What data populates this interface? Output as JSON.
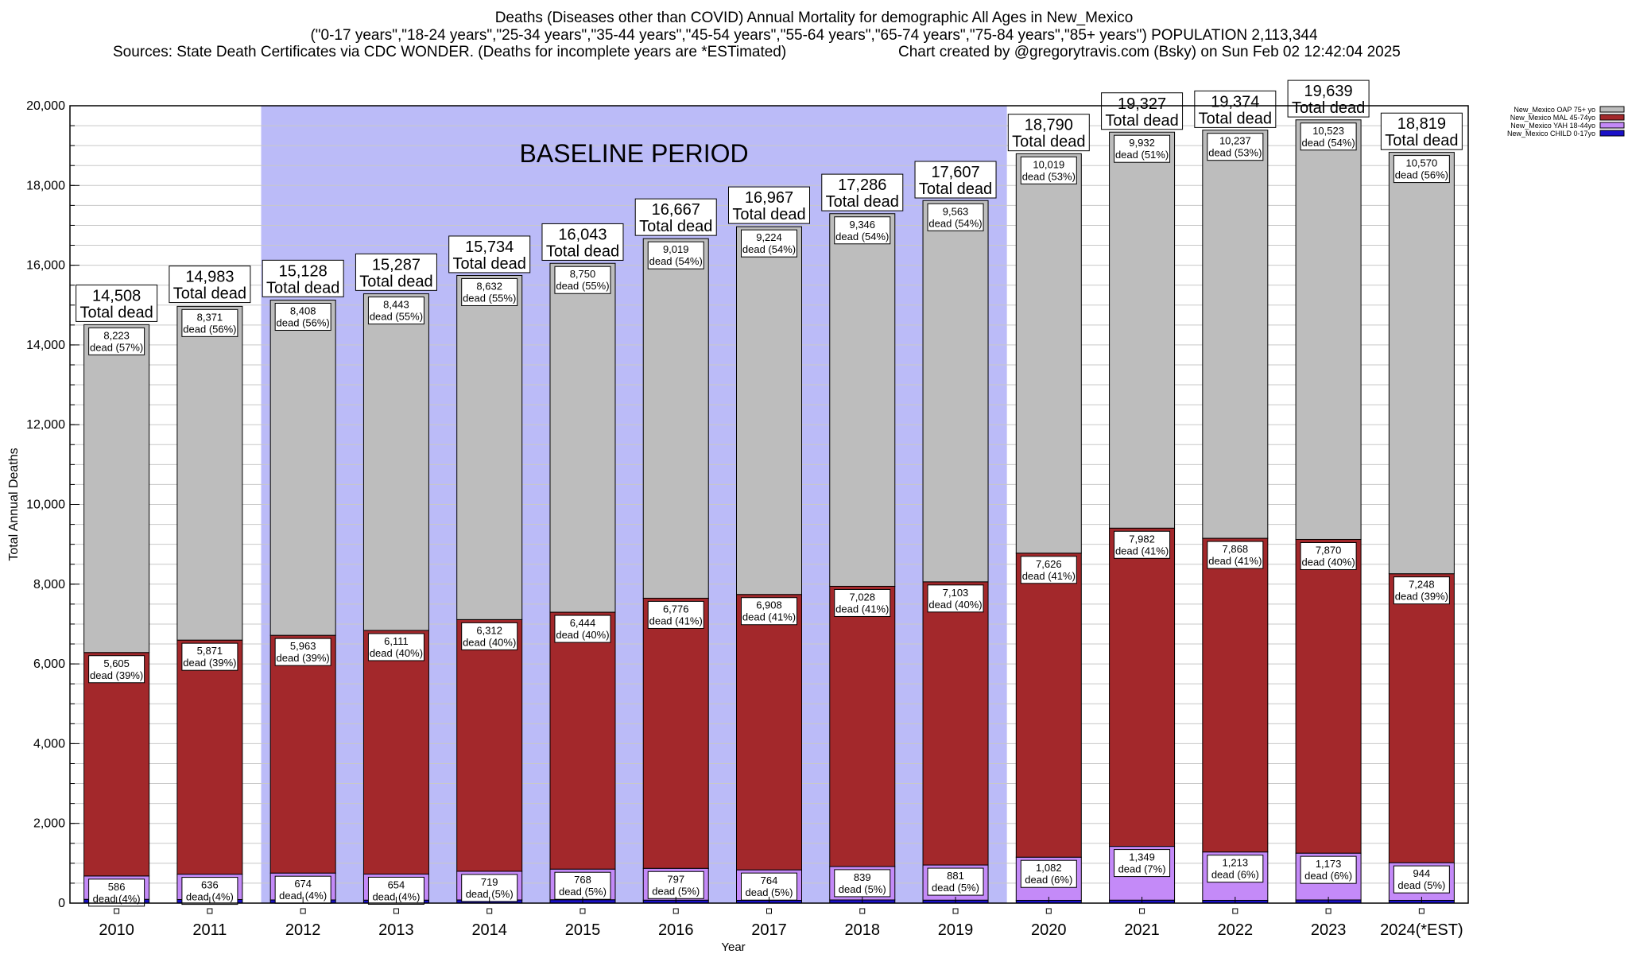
{
  "header": {
    "title": "Deaths (Diseases other than COVID) Annual Mortality for demographic All Ages in New_Mexico",
    "subtitle": "(\"0-17 years\",\"18-24 years\",\"25-34 years\",\"35-44 years\",\"45-54 years\",\"55-64 years\",\"65-74 years\",\"75-84 years\",\"85+ years\") POPULATION 2,113,344",
    "sources": "Sources: State Death Certificates via CDC WONDER. (Deaths for incomplete years are *ESTimated)",
    "credit": "Chart created by @gregorytravis.com (Bsky) on Sun Feb 02 12:42:04 2025"
  },
  "chart_data": {
    "type": "bar",
    "stacked": true,
    "xlabel": "Year",
    "ylabel": "Total Annual Deaths",
    "ylim": [
      0,
      20000
    ],
    "yticks": [
      0,
      2000,
      4000,
      6000,
      8000,
      10000,
      12000,
      14000,
      16000,
      18000,
      20000
    ],
    "ytick_labels": [
      "0",
      "2,000",
      "4,000",
      "6,000",
      "8,000",
      "10,000",
      "12,000",
      "14,000",
      "16,000",
      "18,000",
      "20,000"
    ],
    "grid": true,
    "legend_position": "top-right",
    "baseline": {
      "label": "BASELINE PERIOD",
      "from": "2012",
      "to": "2019",
      "color": "#bbbbf8"
    },
    "categories": [
      "2010",
      "2011",
      "2012",
      "2013",
      "2014",
      "2015",
      "2016",
      "2017",
      "2018",
      "2019",
      "2020",
      "2021",
      "2022",
      "2023",
      "2024(*EST)"
    ],
    "series": [
      {
        "name": "New_Mexico CHILD 0-17yo",
        "color": "#1a10c8",
        "values": [
          95,
          90,
          80,
          75,
          80,
          85,
          75,
          70,
          80,
          75,
          70,
          75,
          70,
          80,
          70
        ]
      },
      {
        "name": "New_Mexico YAH 18-44yo",
        "color": "#c48af8",
        "values": [
          586,
          636,
          674,
          654,
          719,
          768,
          797,
          764,
          839,
          881,
          1082,
          1349,
          1213,
          1173,
          944
        ],
        "labels": [
          "586",
          "636",
          "674",
          "654",
          "719",
          "768",
          "797",
          "764",
          "839",
          "881",
          "1,082",
          "1,349",
          "1,213",
          "1,173",
          "944"
        ],
        "percents": [
          "4%",
          "4%",
          "4%",
          "4%",
          "5%",
          "5%",
          "5%",
          "5%",
          "5%",
          "5%",
          "6%",
          "7%",
          "6%",
          "6%",
          "5%"
        ]
      },
      {
        "name": "New_Mexico MAL 45-74yo",
        "color": "#a3282b",
        "values": [
          5605,
          5871,
          5963,
          6111,
          6312,
          6444,
          6776,
          6908,
          7028,
          7103,
          7626,
          7982,
          7868,
          7870,
          7248
        ],
        "labels": [
          "5,605",
          "5,871",
          "5,963",
          "6,111",
          "6,312",
          "6,444",
          "6,776",
          "6,908",
          "7,028",
          "7,103",
          "7,626",
          "7,982",
          "7,868",
          "7,870",
          "7,248"
        ],
        "percents": [
          "39%",
          "39%",
          "39%",
          "40%",
          "40%",
          "40%",
          "41%",
          "41%",
          "41%",
          "40%",
          "41%",
          "41%",
          "41%",
          "40%",
          "39%"
        ]
      },
      {
        "name": "New_Mexico OAP 75+ yo",
        "color": "#bdbdbd",
        "values": [
          8223,
          8371,
          8408,
          8443,
          8632,
          8750,
          9019,
          9224,
          9346,
          9563,
          10019,
          9932,
          10237,
          10523,
          10570
        ],
        "labels": [
          "8,223",
          "8,371",
          "8,408",
          "8,443",
          "8,632",
          "8,750",
          "9,019",
          "9,224",
          "9,346",
          "9,563",
          "10,019",
          "9,932",
          "10,237",
          "10,523",
          "10,570"
        ],
        "percents": [
          "57%",
          "56%",
          "56%",
          "55%",
          "55%",
          "55%",
          "54%",
          "54%",
          "54%",
          "54%",
          "53%",
          "51%",
          "53%",
          "54%",
          "56%"
        ]
      }
    ],
    "totals": [
      14508,
      14983,
      15128,
      15287,
      15734,
      16043,
      16667,
      16967,
      17286,
      17607,
      18790,
      19327,
      19374,
      19639,
      18819
    ],
    "total_labels": [
      "14,508",
      "14,983",
      "15,128",
      "15,287",
      "15,734",
      "16,043",
      "16,667",
      "16,967",
      "17,286",
      "17,607",
      "18,790",
      "19,327",
      "19,374",
      "19,639",
      "18,819"
    ],
    "total_suffix": "Total dead",
    "dead_prefix": "dead",
    "legend_order": [
      "New_Mexico OAP 75+ yo",
      "New_Mexico MAL 45-74yo",
      "New_Mexico YAH 18-44yo",
      "New_Mexico CHILD 0-17yo"
    ]
  }
}
